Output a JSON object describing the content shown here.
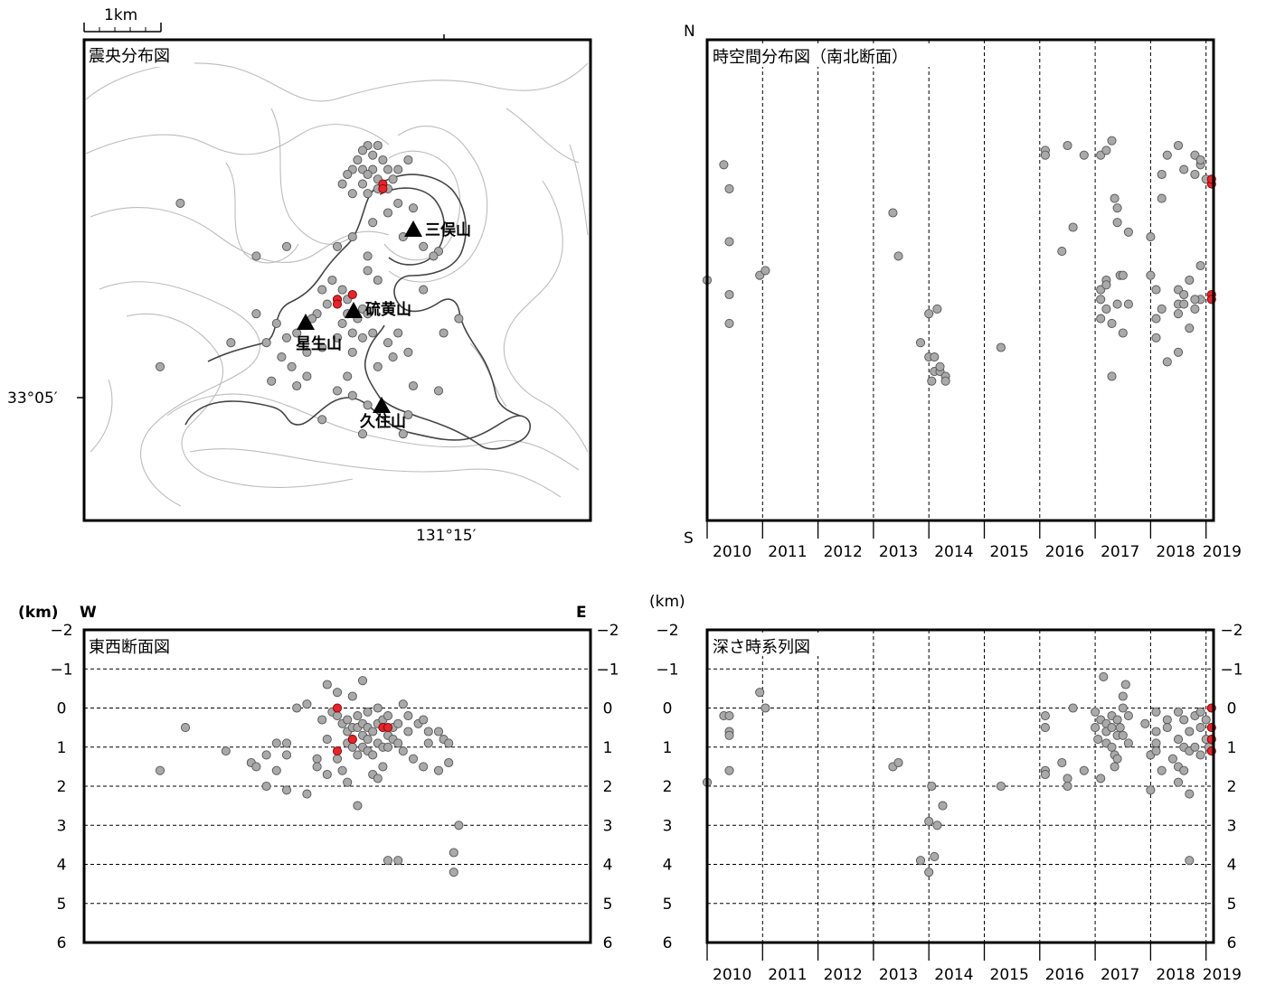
{
  "scale_label": "1km",
  "lat_label": "33°05′",
  "lon_label": "131°15′",
  "panels": {
    "map": {
      "title": "震央分布図"
    },
    "ns": {
      "title": "時空間分布図（南北断面）",
      "north": "N",
      "south": "S"
    },
    "ew": {
      "title": "東西断面図",
      "unit": "(km)",
      "west": "W",
      "east": "E"
    },
    "depth": {
      "title": "深さ時系列図",
      "unit": "(km)"
    }
  },
  "peaks": [
    "三俣山",
    "硫黄山",
    "星生山",
    "久住山"
  ],
  "year_labels": [
    "2010",
    "2011",
    "2012",
    "2013",
    "2014",
    "2015",
    "2016",
    "2017",
    "2018",
    "2019"
  ],
  "depth_labels": [
    "−2",
    "−1",
    "0",
    "1",
    "2",
    "3",
    "4",
    "5",
    "6"
  ],
  "colors": {
    "old_events": "#a9a9a9",
    "recent_events": "#e3262e"
  },
  "chart_data": [
    {
      "type": "scatter",
      "name": "epicenter-map",
      "title": "震央分布図",
      "gray": [
        [
          0.56,
          0.22
        ],
        [
          0.55,
          0.23
        ],
        [
          0.58,
          0.22
        ],
        [
          0.54,
          0.25
        ],
        [
          0.57,
          0.24
        ],
        [
          0.59,
          0.25
        ],
        [
          0.53,
          0.27
        ],
        [
          0.55,
          0.27
        ],
        [
          0.57,
          0.27
        ],
        [
          0.6,
          0.27
        ],
        [
          0.52,
          0.28
        ],
        [
          0.56,
          0.28
        ],
        [
          0.58,
          0.29
        ],
        [
          0.61,
          0.29
        ],
        [
          0.55,
          0.3
        ],
        [
          0.51,
          0.3
        ],
        [
          0.6,
          0.31
        ],
        [
          0.56,
          0.32
        ],
        [
          0.62,
          0.27
        ],
        [
          0.64,
          0.25
        ],
        [
          0.53,
          0.32
        ],
        [
          0.58,
          0.31
        ],
        [
          0.62,
          0.34
        ],
        [
          0.6,
          0.36
        ],
        [
          0.65,
          0.35
        ],
        [
          0.57,
          0.38
        ],
        [
          0.53,
          0.41
        ],
        [
          0.5,
          0.43
        ],
        [
          0.56,
          0.45
        ],
        [
          0.63,
          0.41
        ],
        [
          0.67,
          0.43
        ],
        [
          0.7,
          0.44
        ],
        [
          0.67,
          0.52
        ],
        [
          0.58,
          0.5
        ],
        [
          0.56,
          0.48
        ],
        [
          0.51,
          0.52
        ],
        [
          0.49,
          0.5
        ],
        [
          0.5,
          0.54
        ],
        [
          0.52,
          0.54
        ],
        [
          0.48,
          0.55
        ],
        [
          0.46,
          0.57
        ],
        [
          0.47,
          0.52
        ],
        [
          0.52,
          0.57
        ],
        [
          0.55,
          0.56
        ],
        [
          0.54,
          0.58
        ],
        [
          0.56,
          0.57
        ],
        [
          0.51,
          0.59
        ],
        [
          0.57,
          0.61
        ],
        [
          0.53,
          0.61
        ],
        [
          0.42,
          0.61
        ],
        [
          0.45,
          0.58
        ],
        [
          0.38,
          0.59
        ],
        [
          0.4,
          0.62
        ],
        [
          0.36,
          0.63
        ],
        [
          0.29,
          0.63
        ],
        [
          0.34,
          0.57
        ],
        [
          0.41,
          0.68
        ],
        [
          0.44,
          0.7
        ],
        [
          0.42,
          0.72
        ],
        [
          0.37,
          0.71
        ],
        [
          0.47,
          0.64
        ],
        [
          0.5,
          0.62
        ],
        [
          0.53,
          0.65
        ],
        [
          0.55,
          0.62
        ],
        [
          0.6,
          0.63
        ],
        [
          0.62,
          0.61
        ],
        [
          0.61,
          0.66
        ],
        [
          0.64,
          0.65
        ],
        [
          0.58,
          0.68
        ],
        [
          0.52,
          0.7
        ],
        [
          0.5,
          0.73
        ],
        [
          0.53,
          0.74
        ],
        [
          0.56,
          0.76
        ],
        [
          0.65,
          0.72
        ],
        [
          0.7,
          0.73
        ],
        [
          0.74,
          0.58
        ],
        [
          0.71,
          0.61
        ],
        [
          0.47,
          0.79
        ],
        [
          0.55,
          0.82
        ],
        [
          0.63,
          0.82
        ],
        [
          0.19,
          0.34
        ],
        [
          0.15,
          0.68
        ],
        [
          0.4,
          0.43
        ],
        [
          0.34,
          0.45
        ],
        [
          0.69,
          0.45
        ],
        [
          0.44,
          0.65
        ],
        [
          0.39,
          0.66
        ],
        [
          0.64,
          0.78
        ]
      ],
      "red": [
        [
          0.59,
          0.3
        ],
        [
          0.59,
          0.31
        ],
        [
          0.5,
          0.54
        ],
        [
          0.53,
          0.53
        ],
        [
          0.5,
          0.55
        ]
      ]
    },
    {
      "type": "scatter",
      "name": "north-south-time-section",
      "title": "時空間分布図（南北断面）",
      "xlim": [
        2010,
        2019
      ],
      "gray": [
        [
          2010.0,
          0.5
        ],
        [
          2010.3,
          0.26
        ],
        [
          2010.4,
          0.31
        ],
        [
          2010.4,
          0.42
        ],
        [
          2010.4,
          0.53
        ],
        [
          2010.4,
          0.59
        ],
        [
          2010.95,
          0.49
        ],
        [
          2011.05,
          0.48
        ],
        [
          2013.35,
          0.36
        ],
        [
          2013.45,
          0.45
        ],
        [
          2013.85,
          0.63
        ],
        [
          2014.0,
          0.57
        ],
        [
          2014.0,
          0.66
        ],
        [
          2014.1,
          0.66
        ],
        [
          2014.05,
          0.71
        ],
        [
          2014.1,
          0.69
        ],
        [
          2014.15,
          0.56
        ],
        [
          2014.2,
          0.69
        ],
        [
          2014.2,
          0.68
        ],
        [
          2014.3,
          0.7
        ],
        [
          2014.3,
          0.71
        ],
        [
          2015.3,
          0.64
        ],
        [
          2016.1,
          0.23
        ],
        [
          2016.1,
          0.24
        ],
        [
          2016.4,
          0.44
        ],
        [
          2016.5,
          0.22
        ],
        [
          2016.6,
          0.39
        ],
        [
          2016.8,
          0.24
        ],
        [
          2017.1,
          0.24
        ],
        [
          2017.1,
          0.52
        ],
        [
          2017.1,
          0.54
        ],
        [
          2017.2,
          0.23
        ],
        [
          2017.2,
          0.5
        ],
        [
          2017.2,
          0.56
        ],
        [
          2017.3,
          0.21
        ],
        [
          2017.35,
          0.33
        ],
        [
          2017.4,
          0.35
        ],
        [
          2017.4,
          0.38
        ],
        [
          2017.4,
          0.55
        ],
        [
          2017.45,
          0.49
        ],
        [
          2017.5,
          0.49
        ],
        [
          2017.5,
          0.61
        ],
        [
          2017.3,
          0.59
        ],
        [
          2017.2,
          0.51
        ],
        [
          2017.3,
          0.7
        ],
        [
          2017.6,
          0.4
        ],
        [
          2017.6,
          0.55
        ],
        [
          2017.1,
          0.58
        ],
        [
          2018.0,
          0.41
        ],
        [
          2018.0,
          0.49
        ],
        [
          2018.1,
          0.52
        ],
        [
          2018.1,
          0.58
        ],
        [
          2018.1,
          0.62
        ],
        [
          2018.2,
          0.28
        ],
        [
          2018.2,
          0.33
        ],
        [
          2018.2,
          0.56
        ],
        [
          2018.3,
          0.67
        ],
        [
          2018.3,
          0.24
        ],
        [
          2018.5,
          0.22
        ],
        [
          2018.5,
          0.52
        ],
        [
          2018.5,
          0.55
        ],
        [
          2018.5,
          0.57
        ],
        [
          2018.5,
          0.65
        ],
        [
          2018.6,
          0.55
        ],
        [
          2018.6,
          0.27
        ],
        [
          2018.6,
          0.53
        ],
        [
          2018.7,
          0.5
        ],
        [
          2018.7,
          0.6
        ],
        [
          2018.8,
          0.24
        ],
        [
          2018.8,
          0.28
        ],
        [
          2018.9,
          0.26
        ],
        [
          2018.9,
          0.54
        ],
        [
          2018.9,
          0.25
        ],
        [
          2018.8,
          0.54
        ],
        [
          2018.8,
          0.56
        ],
        [
          2018.9,
          0.47
        ],
        [
          2019.0,
          0.29
        ]
      ],
      "red": [
        [
          2019.1,
          0.3
        ],
        [
          2019.1,
          0.29
        ],
        [
          2019.1,
          0.53
        ],
        [
          2019.1,
          0.54
        ]
      ]
    },
    {
      "type": "scatter",
      "name": "east-west-depth-section",
      "title": "東西断面図",
      "ylabel": "(km)",
      "ylim": [
        -2,
        6
      ],
      "gray": [
        [
          0.2,
          0.5
        ],
        [
          0.15,
          1.6
        ],
        [
          0.28,
          1.1
        ],
        [
          0.33,
          1.4
        ],
        [
          0.34,
          1.5
        ],
        [
          0.36,
          1.2
        ],
        [
          0.38,
          0.9
        ],
        [
          0.38,
          1.6
        ],
        [
          0.36,
          2.0
        ],
        [
          0.4,
          0.9
        ],
        [
          0.4,
          1.2
        ],
        [
          0.4,
          2.1
        ],
        [
          0.42,
          0.0
        ],
        [
          0.44,
          2.2
        ],
        [
          0.44,
          -0.1
        ],
        [
          0.46,
          1.3
        ],
        [
          0.46,
          1.5
        ],
        [
          0.47,
          0.3
        ],
        [
          0.48,
          0.8
        ],
        [
          0.48,
          1.7
        ],
        [
          0.48,
          -0.6
        ],
        [
          0.49,
          0.1
        ],
        [
          0.5,
          0.2
        ],
        [
          0.5,
          -0.4
        ],
        [
          0.5,
          1.3
        ],
        [
          0.51,
          0.4
        ],
        [
          0.51,
          1.6
        ],
        [
          0.52,
          0.3
        ],
        [
          0.52,
          0.6
        ],
        [
          0.52,
          0.9
        ],
        [
          0.52,
          1.9
        ],
        [
          0.53,
          0.5
        ],
        [
          0.53,
          0.8
        ],
        [
          0.53,
          1.0
        ],
        [
          0.53,
          -0.3
        ],
        [
          0.54,
          0.2
        ],
        [
          0.54,
          0.5
        ],
        [
          0.54,
          1.2
        ],
        [
          0.54,
          2.5
        ],
        [
          0.55,
          0.4
        ],
        [
          0.55,
          0.7
        ],
        [
          0.55,
          1.0
        ],
        [
          0.55,
          -0.7
        ],
        [
          0.56,
          0.1
        ],
        [
          0.56,
          0.5
        ],
        [
          0.56,
          0.8
        ],
        [
          0.56,
          1.1
        ],
        [
          0.57,
          0.6
        ],
        [
          0.57,
          1.2
        ],
        [
          0.57,
          1.7
        ],
        [
          0.58,
          0.0
        ],
        [
          0.58,
          0.4
        ],
        [
          0.58,
          0.9
        ],
        [
          0.58,
          1.8
        ],
        [
          0.59,
          0.3
        ],
        [
          0.59,
          1.0
        ],
        [
          0.59,
          1.5
        ],
        [
          0.6,
          0.2
        ],
        [
          0.6,
          0.7
        ],
        [
          0.6,
          1.0
        ],
        [
          0.61,
          0.5
        ],
        [
          0.61,
          0.8
        ],
        [
          0.62,
          0.4
        ],
        [
          0.62,
          0.9
        ],
        [
          0.63,
          1.1
        ],
        [
          0.63,
          -0.1
        ],
        [
          0.64,
          0.6
        ],
        [
          0.64,
          0.2
        ],
        [
          0.65,
          1.3
        ],
        [
          0.66,
          0.4
        ],
        [
          0.67,
          0.3
        ],
        [
          0.67,
          1.5
        ],
        [
          0.68,
          0.9
        ],
        [
          0.68,
          0.6
        ],
        [
          0.7,
          1.6
        ],
        [
          0.7,
          0.6
        ],
        [
          0.71,
          0.8
        ],
        [
          0.72,
          1.4
        ],
        [
          0.72,
          0.9
        ],
        [
          0.74,
          3.0
        ],
        [
          0.73,
          3.7
        ],
        [
          0.73,
          4.2
        ],
        [
          0.6,
          3.9
        ],
        [
          0.62,
          3.9
        ]
      ],
      "red": [
        [
          0.5,
          0.0
        ],
        [
          0.53,
          0.8
        ],
        [
          0.59,
          0.5
        ],
        [
          0.5,
          1.1
        ],
        [
          0.6,
          0.5
        ]
      ]
    },
    {
      "type": "scatter",
      "name": "depth-time-series",
      "title": "深さ時系列図",
      "ylabel": "(km)",
      "xlim": [
        2010,
        2019
      ],
      "ylim": [
        -2,
        6
      ],
      "gray": [
        [
          2010.0,
          1.9
        ],
        [
          2010.3,
          0.2
        ],
        [
          2010.4,
          0.2
        ],
        [
          2010.4,
          0.6
        ],
        [
          2010.4,
          0.7
        ],
        [
          2010.4,
          1.6
        ],
        [
          2010.95,
          -0.4
        ],
        [
          2011.05,
          0.0
        ],
        [
          2013.35,
          1.5
        ],
        [
          2013.45,
          1.4
        ],
        [
          2013.85,
          3.9
        ],
        [
          2014.0,
          2.9
        ],
        [
          2014.0,
          4.2
        ],
        [
          2014.05,
          2.0
        ],
        [
          2014.1,
          3.8
        ],
        [
          2014.15,
          3.0
        ],
        [
          2014.25,
          2.5
        ],
        [
          2015.3,
          2.0
        ],
        [
          2016.1,
          0.2
        ],
        [
          2016.1,
          0.5
        ],
        [
          2016.1,
          1.6
        ],
        [
          2016.1,
          1.7
        ],
        [
          2016.4,
          1.4
        ],
        [
          2016.5,
          1.8
        ],
        [
          2016.5,
          2.0
        ],
        [
          2016.6,
          0.0
        ],
        [
          2016.8,
          1.6
        ],
        [
          2017.0,
          0.1
        ],
        [
          2017.0,
          0.5
        ],
        [
          2017.05,
          0.8
        ],
        [
          2017.1,
          0.3
        ],
        [
          2017.1,
          1.8
        ],
        [
          2017.15,
          -0.8
        ],
        [
          2017.2,
          0.4
        ],
        [
          2017.2,
          0.6
        ],
        [
          2017.2,
          0.9
        ],
        [
          2017.3,
          0.2
        ],
        [
          2017.3,
          0.5
        ],
        [
          2017.3,
          1.0
        ],
        [
          2017.35,
          1.2
        ],
        [
          2017.35,
          1.5
        ],
        [
          2017.4,
          0.3
        ],
        [
          2017.4,
          0.7
        ],
        [
          2017.4,
          1.3
        ],
        [
          2017.45,
          0.5
        ],
        [
          2017.5,
          -0.3
        ],
        [
          2017.5,
          0.0
        ],
        [
          2017.5,
          0.7
        ],
        [
          2017.55,
          -0.6
        ],
        [
          2017.6,
          0.2
        ],
        [
          2017.6,
          0.9
        ],
        [
          2017.9,
          0.4
        ],
        [
          2018.0,
          1.2
        ],
        [
          2018.0,
          2.1
        ],
        [
          2018.1,
          0.1
        ],
        [
          2018.1,
          0.6
        ],
        [
          2018.1,
          0.9
        ],
        [
          2018.1,
          1.1
        ],
        [
          2018.2,
          1.6
        ],
        [
          2018.3,
          0.3
        ],
        [
          2018.3,
          0.5
        ],
        [
          2018.4,
          1.3
        ],
        [
          2018.5,
          0.1
        ],
        [
          2018.5,
          0.8
        ],
        [
          2018.5,
          1.5
        ],
        [
          2018.5,
          1.9
        ],
        [
          2018.6,
          0.3
        ],
        [
          2018.6,
          1.0
        ],
        [
          2018.6,
          1.6
        ],
        [
          2018.7,
          0.6
        ],
        [
          2018.7,
          1.1
        ],
        [
          2018.7,
          2.2
        ],
        [
          2018.7,
          3.9
        ],
        [
          2018.8,
          0.2
        ],
        [
          2018.8,
          1.0
        ],
        [
          2018.9,
          0.1
        ],
        [
          2018.9,
          0.5
        ],
        [
          2018.9,
          1.2
        ],
        [
          2019.0,
          0.3
        ],
        [
          2019.0,
          0.8
        ],
        [
          2019.05,
          1.0
        ]
      ],
      "red": [
        [
          2019.1,
          0.0
        ],
        [
          2019.1,
          0.5
        ],
        [
          2019.1,
          0.8
        ],
        [
          2019.1,
          1.1
        ]
      ]
    }
  ]
}
